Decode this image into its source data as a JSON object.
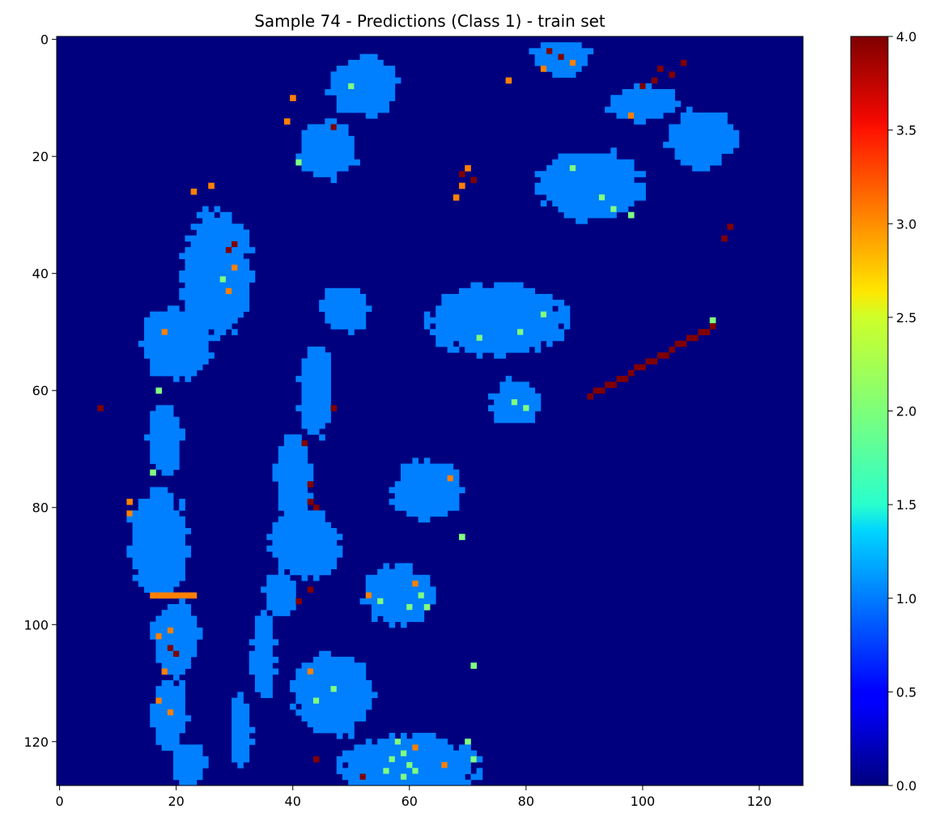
{
  "chart_data": {
    "type": "heatmap",
    "title": "Sample 74 - Predictions (Class 1) - train set",
    "xlabel": "",
    "ylabel": "",
    "colormap": "jet",
    "grid": false,
    "grid_size": [
      128,
      128
    ],
    "x_ticks": [
      0,
      20,
      40,
      60,
      80,
      100,
      120
    ],
    "y_ticks": [
      0,
      20,
      40,
      60,
      80,
      100,
      120
    ],
    "xlim": [
      -0.5,
      127.5
    ],
    "ylim": [
      127.5,
      -0.5
    ],
    "value_range": [
      0.0,
      4.0
    ],
    "colorbar": {
      "ticks": [
        0.0,
        0.5,
        1.0,
        1.5,
        2.0,
        2.5,
        3.0,
        3.5,
        4.0
      ],
      "tick_labels": [
        "0.0",
        "0.5",
        "1.0",
        "1.5",
        "2.0",
        "2.5",
        "3.0",
        "3.5",
        "4.0"
      ],
      "placement": "right"
    },
    "background_value": 0,
    "regions": [
      {
        "value": 1,
        "cx": 110,
        "cy": 17,
        "rx": 6,
        "ry": 5
      },
      {
        "value": 1,
        "cx": 100,
        "cy": 11,
        "rx": 6,
        "ry": 3
      },
      {
        "value": 1,
        "cx": 86,
        "cy": 3,
        "rx": 5,
        "ry": 3
      },
      {
        "value": 1,
        "cx": 91,
        "cy": 25,
        "rx": 9,
        "ry": 6
      },
      {
        "value": 1,
        "cx": 75,
        "cy": 48,
        "rx": 12,
        "ry": 6
      },
      {
        "value": 1,
        "cx": 78,
        "cy": 62,
        "rx": 4,
        "ry": 4
      },
      {
        "value": 1,
        "cx": 63,
        "cy": 77,
        "rx": 6,
        "ry": 5
      },
      {
        "value": 1,
        "cx": 58,
        "cy": 95,
        "rx": 6,
        "ry": 5
      },
      {
        "value": 1,
        "cx": 47,
        "cy": 112,
        "rx": 7,
        "ry": 7
      },
      {
        "value": 1,
        "cx": 60,
        "cy": 124,
        "rx": 12,
        "ry": 5
      },
      {
        "value": 1,
        "cx": 52,
        "cy": 8,
        "rx": 6,
        "ry": 5
      },
      {
        "value": 1,
        "cx": 46,
        "cy": 19,
        "rx": 5,
        "ry": 5
      },
      {
        "value": 1,
        "cx": 27,
        "cy": 40,
        "rx": 6,
        "ry": 11
      },
      {
        "value": 1,
        "cx": 20,
        "cy": 52,
        "rx": 6,
        "ry": 6
      },
      {
        "value": 1,
        "cx": 18,
        "cy": 68,
        "rx": 3,
        "ry": 6
      },
      {
        "value": 1,
        "cx": 17,
        "cy": 86,
        "rx": 5,
        "ry": 9
      },
      {
        "value": 1,
        "cx": 20,
        "cy": 102,
        "rx": 4,
        "ry": 6
      },
      {
        "value": 1,
        "cx": 19,
        "cy": 115,
        "rx": 3,
        "ry": 6
      },
      {
        "value": 1,
        "cx": 22,
        "cy": 124,
        "rx": 3,
        "ry": 4
      },
      {
        "value": 1,
        "cx": 42,
        "cy": 86,
        "rx": 6,
        "ry": 6
      },
      {
        "value": 1,
        "cx": 40,
        "cy": 75,
        "rx": 3,
        "ry": 7
      },
      {
        "value": 1,
        "cx": 44,
        "cy": 60,
        "rx": 3,
        "ry": 8
      },
      {
        "value": 1,
        "cx": 49,
        "cy": 46,
        "rx": 4,
        "ry": 4
      },
      {
        "value": 1,
        "cx": 35,
        "cy": 105,
        "rx": 2,
        "ry": 8
      },
      {
        "value": 1,
        "cx": 31,
        "cy": 118,
        "rx": 2,
        "ry": 6
      },
      {
        "value": 1,
        "cx": 38,
        "cy": 95,
        "rx": 3,
        "ry": 4
      }
    ],
    "lines": [
      {
        "value": 4,
        "from": [
          91,
          61
        ],
        "to": [
          112,
          49
        ]
      },
      {
        "value": 3,
        "from": [
          16,
          95
        ],
        "to": [
          23,
          95
        ]
      }
    ],
    "hot_spots": [
      {
        "value": 4,
        "x": 84,
        "y": 2
      },
      {
        "value": 4,
        "x": 86,
        "y": 3
      },
      {
        "value": 4,
        "x": 103,
        "y": 5
      },
      {
        "value": 4,
        "x": 105,
        "y": 6
      },
      {
        "value": 4,
        "x": 100,
        "y": 8
      },
      {
        "value": 4,
        "x": 102,
        "y": 7
      },
      {
        "value": 4,
        "x": 107,
        "y": 4
      },
      {
        "value": 4,
        "x": 69,
        "y": 23
      },
      {
        "value": 4,
        "x": 71,
        "y": 24
      },
      {
        "value": 4,
        "x": 42,
        "y": 69
      },
      {
        "value": 4,
        "x": 43,
        "y": 76
      },
      {
        "value": 4,
        "x": 43,
        "y": 79
      },
      {
        "value": 4,
        "x": 44,
        "y": 80
      },
      {
        "value": 4,
        "x": 43,
        "y": 94
      },
      {
        "value": 4,
        "x": 41,
        "y": 96
      },
      {
        "value": 4,
        "x": 29,
        "y": 36
      },
      {
        "value": 4,
        "x": 30,
        "y": 35
      },
      {
        "value": 4,
        "x": 19,
        "y": 104
      },
      {
        "value": 4,
        "x": 20,
        "y": 105
      },
      {
        "value": 4,
        "x": 47,
        "y": 15
      },
      {
        "value": 4,
        "x": 44,
        "y": 123
      },
      {
        "value": 4,
        "x": 52,
        "y": 126
      },
      {
        "value": 4,
        "x": 115,
        "y": 32
      },
      {
        "value": 4,
        "x": 114,
        "y": 34
      },
      {
        "value": 4,
        "x": 7,
        "y": 63
      },
      {
        "value": 4,
        "x": 47,
        "y": 63
      },
      {
        "value": 3,
        "x": 69,
        "y": 25
      },
      {
        "value": 3,
        "x": 68,
        "y": 27
      },
      {
        "value": 3,
        "x": 70,
        "y": 22
      },
      {
        "value": 3,
        "x": 53,
        "y": 95
      },
      {
        "value": 3,
        "x": 61,
        "y": 93
      },
      {
        "value": 3,
        "x": 19,
        "y": 101
      },
      {
        "value": 3,
        "x": 17,
        "y": 102
      },
      {
        "value": 3,
        "x": 18,
        "y": 108
      },
      {
        "value": 3,
        "x": 17,
        "y": 113
      },
      {
        "value": 3,
        "x": 19,
        "y": 115
      },
      {
        "value": 3,
        "x": 12,
        "y": 79
      },
      {
        "value": 3,
        "x": 12,
        "y": 81
      },
      {
        "value": 3,
        "x": 26,
        "y": 25
      },
      {
        "value": 3,
        "x": 30,
        "y": 39
      },
      {
        "value": 3,
        "x": 29,
        "y": 43
      },
      {
        "value": 3,
        "x": 40,
        "y": 10
      },
      {
        "value": 3,
        "x": 39,
        "y": 14
      },
      {
        "value": 3,
        "x": 88,
        "y": 4
      },
      {
        "value": 3,
        "x": 83,
        "y": 5
      },
      {
        "value": 3,
        "x": 77,
        "y": 7
      },
      {
        "value": 3,
        "x": 67,
        "y": 75
      },
      {
        "value": 3,
        "x": 98,
        "y": 13
      },
      {
        "value": 3,
        "x": 23,
        "y": 26
      },
      {
        "value": 3,
        "x": 18,
        "y": 50
      },
      {
        "value": 3,
        "x": 43,
        "y": 108
      },
      {
        "value": 3,
        "x": 61,
        "y": 121
      },
      {
        "value": 3,
        "x": 66,
        "y": 124
      },
      {
        "value": 2,
        "x": 58,
        "y": 120
      },
      {
        "value": 2,
        "x": 59,
        "y": 122
      },
      {
        "value": 2,
        "x": 60,
        "y": 124
      },
      {
        "value": 2,
        "x": 57,
        "y": 123
      },
      {
        "value": 2,
        "x": 61,
        "y": 125
      },
      {
        "value": 2,
        "x": 56,
        "y": 125
      },
      {
        "value": 2,
        "x": 59,
        "y": 126
      },
      {
        "value": 2,
        "x": 62,
        "y": 95
      },
      {
        "value": 2,
        "x": 60,
        "y": 97
      },
      {
        "value": 2,
        "x": 55,
        "y": 96
      },
      {
        "value": 2,
        "x": 63,
        "y": 97
      },
      {
        "value": 2,
        "x": 95,
        "y": 29
      },
      {
        "value": 2,
        "x": 98,
        "y": 30
      },
      {
        "value": 2,
        "x": 93,
        "y": 27
      },
      {
        "value": 2,
        "x": 80,
        "y": 63
      },
      {
        "value": 2,
        "x": 78,
        "y": 62
      },
      {
        "value": 2,
        "x": 79,
        "y": 50
      },
      {
        "value": 2,
        "x": 83,
        "y": 47
      },
      {
        "value": 2,
        "x": 72,
        "y": 51
      },
      {
        "value": 2,
        "x": 47,
        "y": 111
      },
      {
        "value": 2,
        "x": 44,
        "y": 113
      },
      {
        "value": 2,
        "x": 70,
        "y": 120
      },
      {
        "value": 2,
        "x": 71,
        "y": 123
      },
      {
        "value": 2,
        "x": 17,
        "y": 60
      },
      {
        "value": 2,
        "x": 16,
        "y": 74
      },
      {
        "value": 2,
        "x": 28,
        "y": 41
      },
      {
        "value": 2,
        "x": 41,
        "y": 21
      },
      {
        "value": 2,
        "x": 50,
        "y": 8
      },
      {
        "value": 2,
        "x": 88,
        "y": 22
      },
      {
        "value": 2,
        "x": 112,
        "y": 48
      },
      {
        "value": 2,
        "x": 69,
        "y": 85
      },
      {
        "value": 2,
        "x": 71,
        "y": 107
      }
    ]
  }
}
